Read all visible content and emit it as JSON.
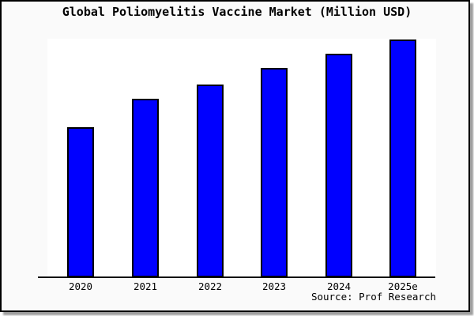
{
  "title": "Global Poliomyelitis Vaccine Market (Million USD)",
  "source_label": "Source: Prof Research",
  "colors": {
    "bar_fill": "#0000ff",
    "bar_border": "#000000",
    "plot_background": "#ffffff",
    "frame_background": "#fafafa",
    "frame_border": "#000000",
    "shadow": "#9e9e9e",
    "text": "#000000"
  },
  "chart_data": {
    "type": "bar",
    "title": "Global Poliomyelitis Vaccine Market (Million USD)",
    "categories": [
      "2020",
      "2021",
      "2022",
      "2023",
      "2024",
      "2025e"
    ],
    "values": [
      63,
      75,
      81,
      88,
      94,
      100
    ],
    "value_note": "y-axis has no tick labels or gridlines; values are bar heights read as percent of tallest bar (2025e = 100)",
    "xlabel": "",
    "ylabel": "",
    "ylim": [
      0,
      100
    ],
    "grid": false,
    "legend": false,
    "annotations": [
      "Source: Prof Research"
    ]
  }
}
